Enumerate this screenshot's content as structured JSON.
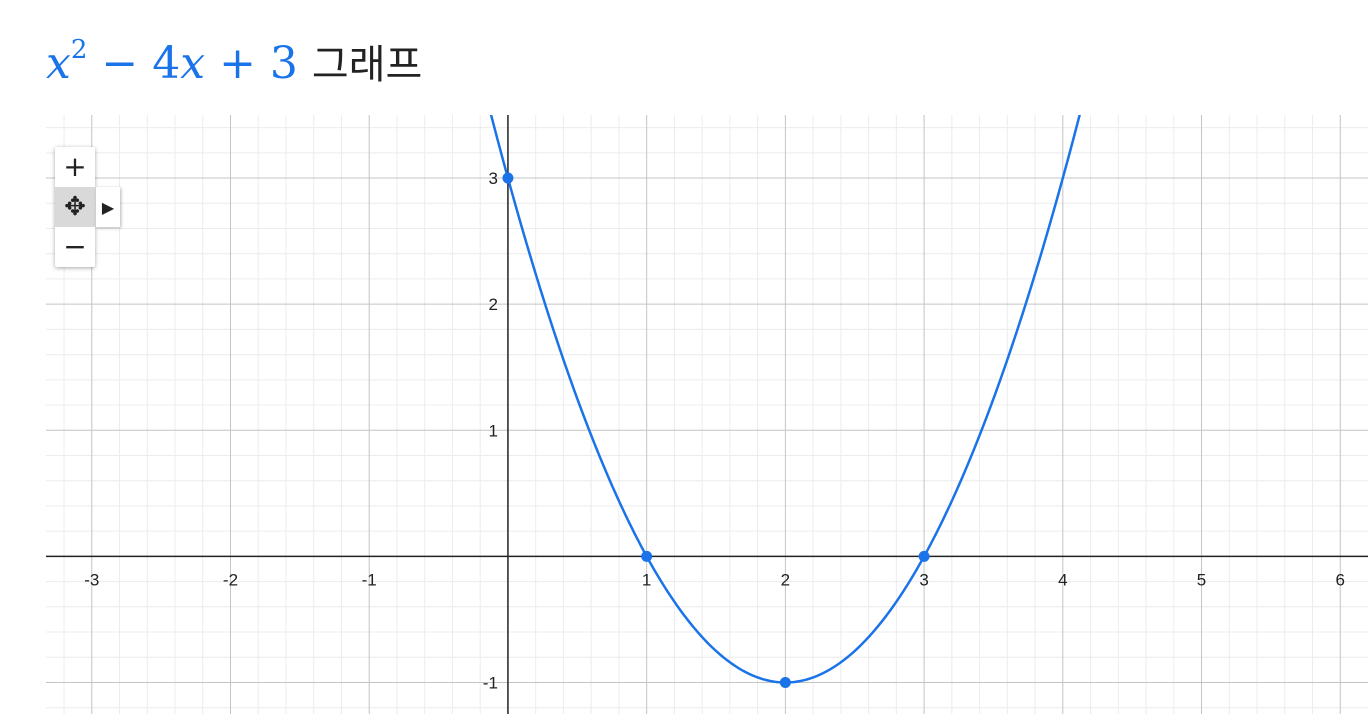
{
  "title": {
    "expr_x": "x",
    "expr_exp": "2",
    "expr_rest": "− 4",
    "expr_x2": "x",
    "expr_tail": "+ 3",
    "text": "그래프"
  },
  "controls": {
    "zoom_in": "+",
    "move": "✥",
    "pan_menu": "▶",
    "zoom_out": "−"
  },
  "chart_data": {
    "type": "line",
    "function": "x^2 - 4x + 3",
    "xlim": [
      -3.33,
      6.2
    ],
    "ylim": [
      -1.25,
      3.5
    ],
    "x_ticks": [
      -3,
      -2,
      -1,
      1,
      2,
      3,
      4,
      5,
      6
    ],
    "x_tick_labels": [
      "-3",
      "-2",
      "-1",
      "1",
      "2",
      "3",
      "4",
      "5",
      "6"
    ],
    "y_ticks": [
      -1,
      1,
      2,
      3
    ],
    "y_tick_labels": [
      "-1",
      "1",
      "2",
      "3"
    ],
    "grid": true,
    "series": [
      {
        "color": "#1a73e8"
      }
    ],
    "points": [
      {
        "x": 0,
        "y": 3
      },
      {
        "x": 1,
        "y": 0
      },
      {
        "x": 3,
        "y": 0
      },
      {
        "x": 2,
        "y": -1
      }
    ]
  }
}
